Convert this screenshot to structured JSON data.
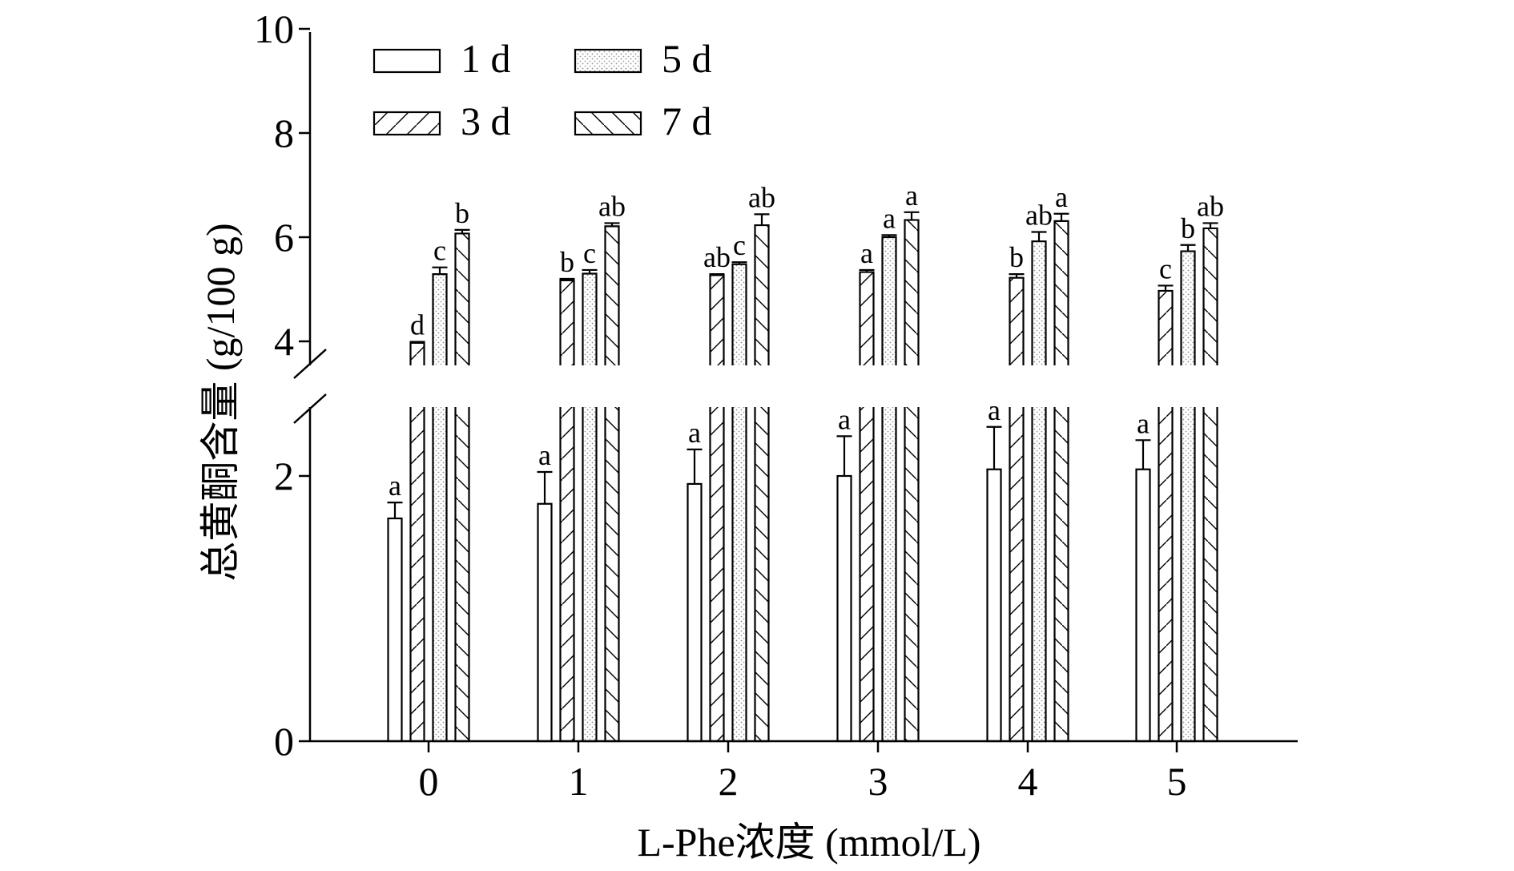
{
  "chart_data": {
    "type": "bar",
    "xlabel": "L-Phe浓度 (mmol/L)",
    "ylabel": "总黄酮含量 (g/100 g)",
    "categories": [
      "0",
      "1",
      "2",
      "3",
      "4",
      "5"
    ],
    "y_axis": {
      "broken": true,
      "lower_segment": {
        "range": [
          0,
          2.5
        ],
        "ticks": [
          "0",
          "2"
        ]
      },
      "upper_segment": {
        "range": [
          3.6,
          10
        ],
        "ticks": [
          "4",
          "6",
          "8",
          "10"
        ]
      }
    },
    "legend": {
      "placement": "top-left",
      "columns": 2
    },
    "series": [
      {
        "name": "1 d",
        "pattern": "open",
        "values": [
          1.68,
          1.79,
          1.94,
          2.0,
          2.05,
          2.05
        ],
        "errors": [
          0.12,
          0.24,
          0.26,
          0.3,
          0.32,
          0.22
        ],
        "letters": [
          "a",
          "a",
          "a",
          "a",
          "a",
          "a"
        ]
      },
      {
        "name": "3 d",
        "pattern": "forward-hatch",
        "values": [
          3.97,
          5.17,
          5.27,
          5.33,
          5.22,
          4.97
        ],
        "errors": [
          0.02,
          0.03,
          0.02,
          0.04,
          0.07,
          0.1
        ],
        "letters": [
          "d",
          "b",
          "ab",
          "a",
          "b",
          "c"
        ]
      },
      {
        "name": "5 d",
        "pattern": "dotted",
        "values": [
          5.29,
          5.3,
          5.48,
          6.0,
          5.92,
          5.73
        ],
        "errors": [
          0.13,
          0.07,
          0.04,
          0.04,
          0.18,
          0.12
        ],
        "letters": [
          "c",
          "c",
          "c",
          "a",
          "ab",
          "b"
        ]
      },
      {
        "name": "7 d",
        "pattern": "back-hatch",
        "values": [
          6.07,
          6.21,
          6.23,
          6.33,
          6.31,
          6.17
        ],
        "errors": [
          0.07,
          0.06,
          0.21,
          0.15,
          0.14,
          0.1
        ],
        "letters": [
          "b",
          "ab",
          "ab",
          "a",
          "a",
          "ab"
        ]
      }
    ]
  }
}
